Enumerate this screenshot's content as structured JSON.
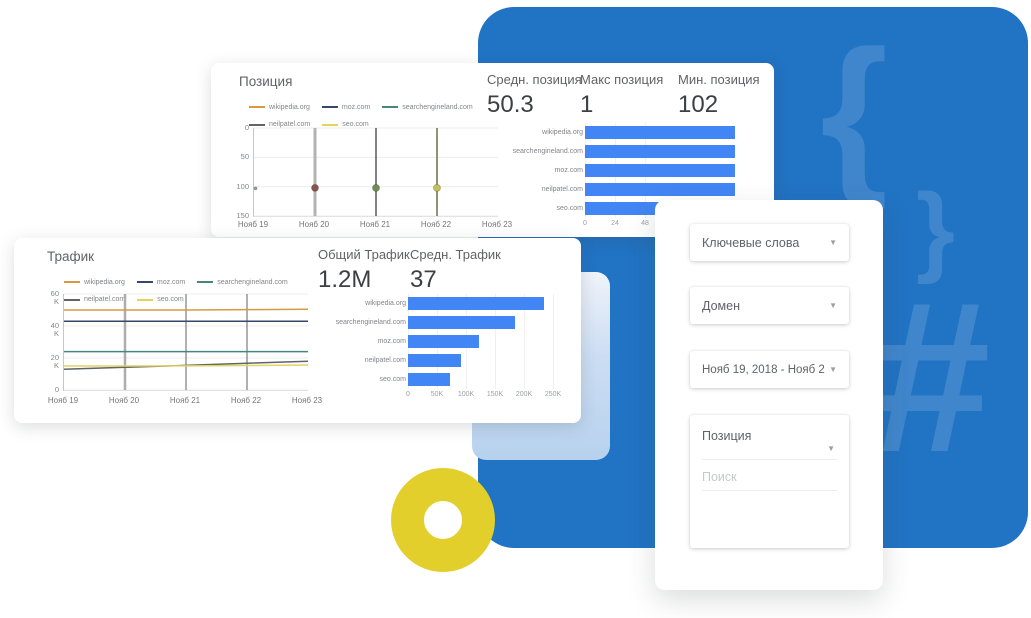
{
  "colors": {
    "primary_blue": "#2173C4",
    "glyph_blue": "rgba(255,255,255,0.14)",
    "bar_blue": "#4285F4",
    "accent_yellow": "#E3CF2C"
  },
  "decor": {
    "glyphs": [
      {
        "char": "{"
      },
      {
        "char": "}"
      },
      {
        "char": "#"
      }
    ]
  },
  "position_card": {
    "title": "Позиция",
    "stats": [
      {
        "label": "Средн. позиция",
        "value": "50.3"
      },
      {
        "label": "Макс позиция",
        "value": "1"
      },
      {
        "label": "Мин. позиция",
        "value": "102"
      }
    ]
  },
  "traffic_card": {
    "title": "Трафик",
    "stats": [
      {
        "label": "Общий Трафик",
        "value": "1.2M"
      },
      {
        "label": "Средн. Трафик",
        "value": "37"
      }
    ]
  },
  "filter_panel": {
    "fields": [
      {
        "label": "Ключевые слова"
      },
      {
        "label": "Домен"
      },
      {
        "label": "Нояб 19, 2018 - Нояб 2"
      },
      {
        "label": "Позиция"
      }
    ],
    "search_placeholder": "Поиск"
  },
  "chart_data": [
    {
      "id": "position-line",
      "type": "scatter",
      "title": "Позиция",
      "x": [
        "Нояб 19",
        "Нояб 20",
        "Нояб 21",
        "Нояб 22",
        "Нояб 23"
      ],
      "y_inverted": true,
      "yticks": [
        0,
        50,
        100,
        150
      ],
      "ylim": [
        0,
        150
      ],
      "grid": true,
      "legend_position": "top",
      "series": [
        {
          "name": "wikipedia.org",
          "color": "#D79A43"
        },
        {
          "name": "moz.com",
          "color": "#39466B"
        },
        {
          "name": "searchengineland.com",
          "color": "#47867F"
        },
        {
          "name": "neilpatel.com",
          "color": "#5E6468"
        },
        {
          "name": "seo.com",
          "color": "#E3D35F"
        }
      ],
      "range_lines": [
        {
          "x": "Нояб 20",
          "color": "#B3B3B3",
          "width": 3
        },
        {
          "x": "Нояб 21",
          "color": "#55585C",
          "width": 1.5
        },
        {
          "x": "Нояб 22",
          "color": "#6E6E49",
          "width": 1.5
        }
      ],
      "markers": [
        {
          "x": "Нояб 19",
          "y": 103,
          "color": "#9AA0A6",
          "r": 1.5
        },
        {
          "x": "Нояб 20",
          "y": 102,
          "color": "#8A544C",
          "r": 3.5
        },
        {
          "x": "Нояб 21",
          "y": 102,
          "color": "#6E8E55",
          "r": 3.5
        },
        {
          "x": "Нояб 22",
          "y": 102,
          "color": "#C3C353",
          "r": 3.5
        }
      ]
    },
    {
      "id": "position-bars",
      "type": "bar",
      "orientation": "horizontal",
      "categories": [
        "wikipedia.org",
        "searchengineland.com",
        "moz.com",
        "neilpatel.com",
        "seo.com"
      ],
      "values": [
        120,
        120,
        120,
        120,
        62
      ],
      "xmax": 120,
      "xticks": [
        "0",
        "24",
        "48"
      ],
      "bar_color": "#4285F4"
    },
    {
      "id": "traffic-line",
      "type": "line",
      "title": "Трафик",
      "x": [
        "Нояб 19",
        "Нояб 20",
        "Нояб 21",
        "Нояб 22",
        "Нояб 23"
      ],
      "yticks": [
        "60K",
        "40K",
        "20K",
        "0"
      ],
      "ylim": [
        0,
        60000
      ],
      "grid": true,
      "legend_position": "top",
      "grid_verticals": [
        {
          "x": "Нояб 20",
          "color": "#ADADAD",
          "width": 2.5
        },
        {
          "x": "Нояб 21",
          "color": "#5E6165",
          "width": 1
        },
        {
          "x": "Нояб 22",
          "color": "#5E6165",
          "width": 1
        }
      ],
      "series": [
        {
          "name": "wikipedia.org",
          "color": "#D79A43",
          "values": [
            50000,
            50000,
            50000,
            50200,
            50500
          ]
        },
        {
          "name": "moz.com",
          "color": "#39466B",
          "values": [
            43000,
            43000,
            43000,
            43000,
            43000
          ]
        },
        {
          "name": "searchengineland.com",
          "color": "#47867F",
          "values": [
            24000,
            24000,
            24000,
            24000,
            24000
          ]
        },
        {
          "name": "neilpatel.com",
          "color": "#5E6468",
          "values": [
            13000,
            14200,
            15400,
            16700,
            18000
          ]
        },
        {
          "name": "seo.com",
          "color": "#E3D35F",
          "values": [
            15000,
            15000,
            15100,
            15300,
            15600
          ]
        }
      ]
    },
    {
      "id": "traffic-bars",
      "type": "bar",
      "orientation": "horizontal",
      "categories": [
        "wikipedia.org",
        "searchengineland.com",
        "moz.com",
        "neilpatel.com",
        "seo.com"
      ],
      "values": [
        235000,
        185000,
        122000,
        92000,
        72000
      ],
      "xmax": 250000,
      "xticks": [
        "0",
        "50K",
        "100K",
        "150K",
        "200K",
        "250K"
      ],
      "bar_color": "#4285F4"
    }
  ]
}
